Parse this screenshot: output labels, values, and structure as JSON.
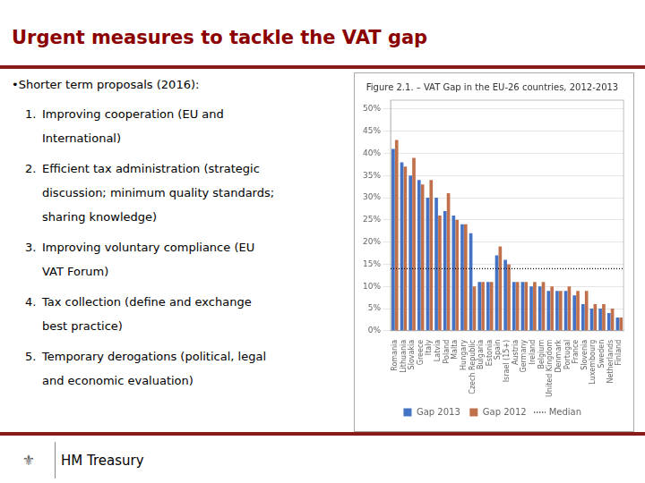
{
  "title": "Urgent measures to tackle the VAT gap",
  "bullet_header": "•Shorter term proposals (2016):",
  "items": [
    {
      "number": "1.",
      "lines": [
        "Improving cooperation (EU and",
        "International)"
      ]
    },
    {
      "number": "2.",
      "lines": [
        "Efficient tax administration (strategic",
        "discussion; minimum quality standards;",
        "sharing knowledge)"
      ]
    },
    {
      "number": "3.",
      "lines": [
        "Improving voluntary compliance (EU",
        "VAT Forum)"
      ]
    },
    {
      "number": "4.",
      "lines": [
        "Tax collection (define and exchange",
        "best practice)"
      ]
    },
    {
      "number": "5.",
      "lines": [
        "Temporary derogations (political, legal",
        "and economic evaluation)"
      ]
    }
  ],
  "footer_symbol": "⚜",
  "footer": "HM Treasury",
  "chart_data": {
    "type": "bar",
    "title": "Figure 2.1. – VAT Gap in the EU-26 countries, 2012-2013",
    "categories": [
      "Romania",
      "Lithuania",
      "Slovakia",
      "Greece",
      "Italy",
      "Latvia",
      "Poland",
      "Malta",
      "Hungary",
      "Czech Republic",
      "Bulgaria",
      "Estonia",
      "Spain",
      "Israel (15+)",
      "Austria",
      "Germany",
      "Ireland",
      "Belgium",
      "United Kingdom",
      "Denmark",
      "Portugal",
      "France",
      "Slovenia",
      "Luxembourg",
      "Sweden",
      "Netherlands",
      "Finland"
    ],
    "series": [
      {
        "name": "Gap 2013",
        "color": "#4472C4",
        "values": [
          0.41,
          0.38,
          0.35,
          0.34,
          0.3,
          0.3,
          0.27,
          0.26,
          0.24,
          0.22,
          0.11,
          0.11,
          0.17,
          0.16,
          0.11,
          0.11,
          0.1,
          0.1,
          0.09,
          0.09,
          0.09,
          0.08,
          0.06,
          0.05,
          0.05,
          0.04,
          0.03
        ]
      },
      {
        "name": "Gap 2012",
        "color": "#C0704A",
        "values": [
          0.43,
          0.37,
          0.39,
          0.33,
          0.34,
          0.26,
          0.31,
          0.25,
          0.24,
          0.1,
          0.11,
          0.11,
          0.19,
          0.15,
          0.11,
          0.11,
          0.11,
          0.11,
          0.1,
          0.09,
          0.1,
          0.09,
          0.09,
          0.06,
          0.06,
          0.05,
          0.03
        ]
      }
    ],
    "reference_lines": [
      {
        "name": "Median",
        "value": 0.14,
        "color": "#000000",
        "line_style": "dotted"
      }
    ],
    "ylim": [
      0,
      0.52
    ],
    "yticks": [
      {
        "value": 0,
        "label": "0%"
      },
      {
        "value": 0.05,
        "label": "5%"
      },
      {
        "value": 0.1,
        "label": "10%"
      },
      {
        "value": 0.15,
        "label": "15%"
      },
      {
        "value": 0.2,
        "label": "20%"
      },
      {
        "value": 0.25,
        "label": "25%"
      },
      {
        "value": 0.3,
        "label": "30%"
      },
      {
        "value": 0.35,
        "label": "35%"
      },
      {
        "value": 0.4,
        "label": "40%"
      },
      {
        "value": 0.45,
        "label": "45%"
      },
      {
        "value": 0.5,
        "label": "50%"
      }
    ],
    "grid": true,
    "legend": "bottom"
  }
}
